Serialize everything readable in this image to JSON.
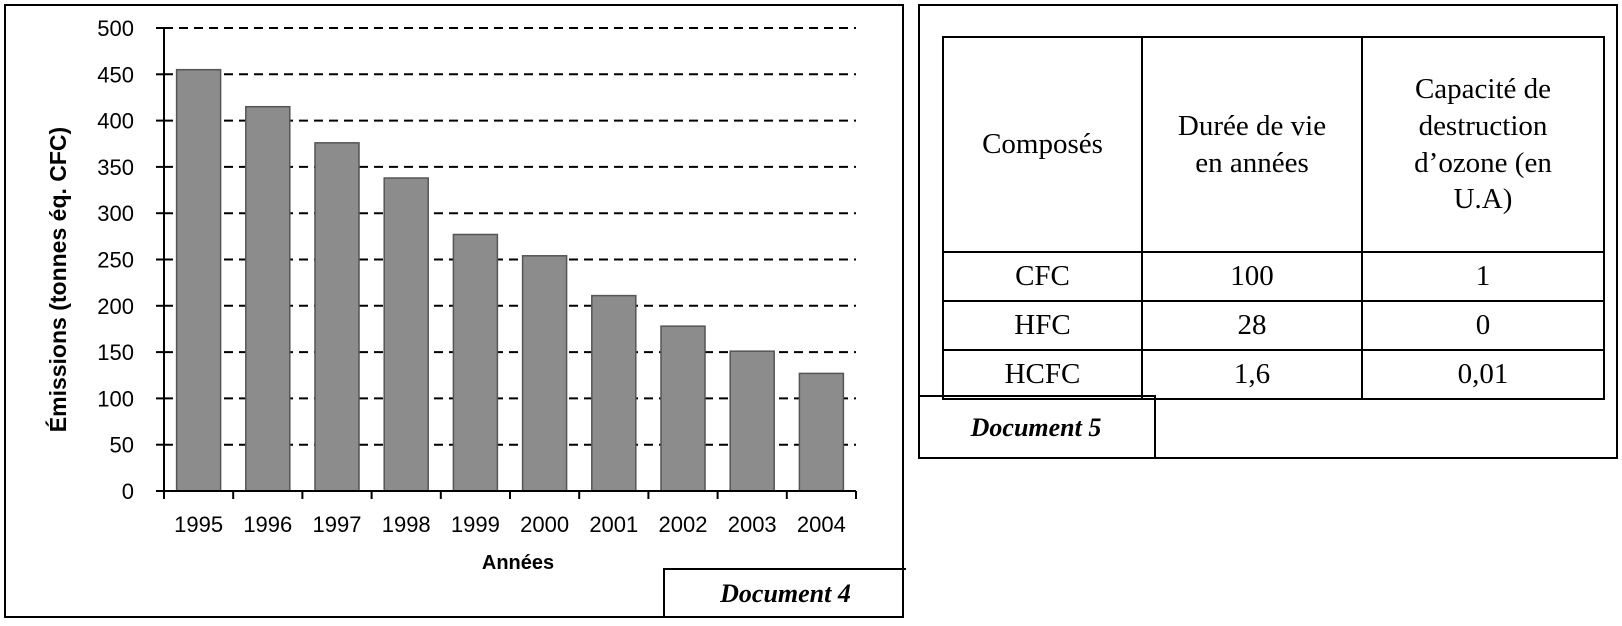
{
  "chart_data": {
    "type": "bar",
    "categories": [
      "1995",
      "1996",
      "1997",
      "1998",
      "1999",
      "2000",
      "2001",
      "2002",
      "2003",
      "2004"
    ],
    "values": [
      455,
      415,
      376,
      338,
      277,
      254,
      211,
      178,
      151,
      127
    ],
    "xlabel": "Années",
    "ylabel": "Émissions (tonnes éq. CFC)",
    "ylim": [
      0,
      500
    ],
    "yticks": [
      0,
      50,
      100,
      150,
      200,
      250,
      300,
      350,
      400,
      450,
      500
    ],
    "grid": "dashed horizontal",
    "colors": {
      "bar": "#8c8c8c",
      "bar_edge": "#555555"
    }
  },
  "document4_label": "Document 4",
  "document5": {
    "label": "Document 5",
    "headers": [
      "Composés",
      "Durée de vie en années",
      "Capacité de destruction d’ozone (en U.A)"
    ],
    "rows": [
      [
        "CFC",
        "100",
        "1"
      ],
      [
        "HFC",
        "28",
        "0"
      ],
      [
        "HCFC",
        "1,6",
        "0,01"
      ]
    ]
  }
}
